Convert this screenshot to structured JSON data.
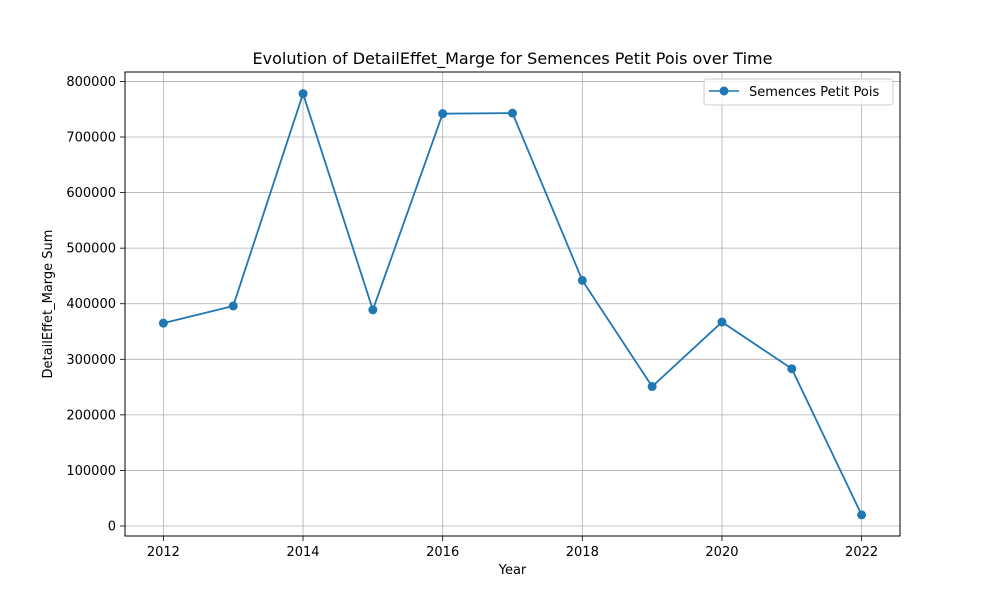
{
  "chart_data": {
    "type": "line",
    "title": "Evolution of DetailEffet_Marge for Semences Petit Pois over Time",
    "xlabel": "Year",
    "ylabel": "DetailEffet_Marge Sum",
    "x": [
      2012,
      2013,
      2014,
      2015,
      2016,
      2017,
      2018,
      2019,
      2020,
      2021,
      2022
    ],
    "series": [
      {
        "name": "Semences Petit Pois",
        "color": "#1f77b4",
        "marker": "circle",
        "values": [
          365000,
          396000,
          778000,
          389000,
          742000,
          743000,
          442000,
          251000,
          367000,
          283000,
          20000
        ]
      }
    ],
    "xlim": [
      2011.45,
      2022.55
    ],
    "ylim": [
      -18000,
      817000
    ],
    "xticks": [
      2012,
      2014,
      2016,
      2018,
      2020,
      2022
    ],
    "yticks": [
      0,
      100000,
      200000,
      300000,
      400000,
      500000,
      600000,
      700000,
      800000
    ],
    "grid": true,
    "legend_position": "top-right"
  }
}
